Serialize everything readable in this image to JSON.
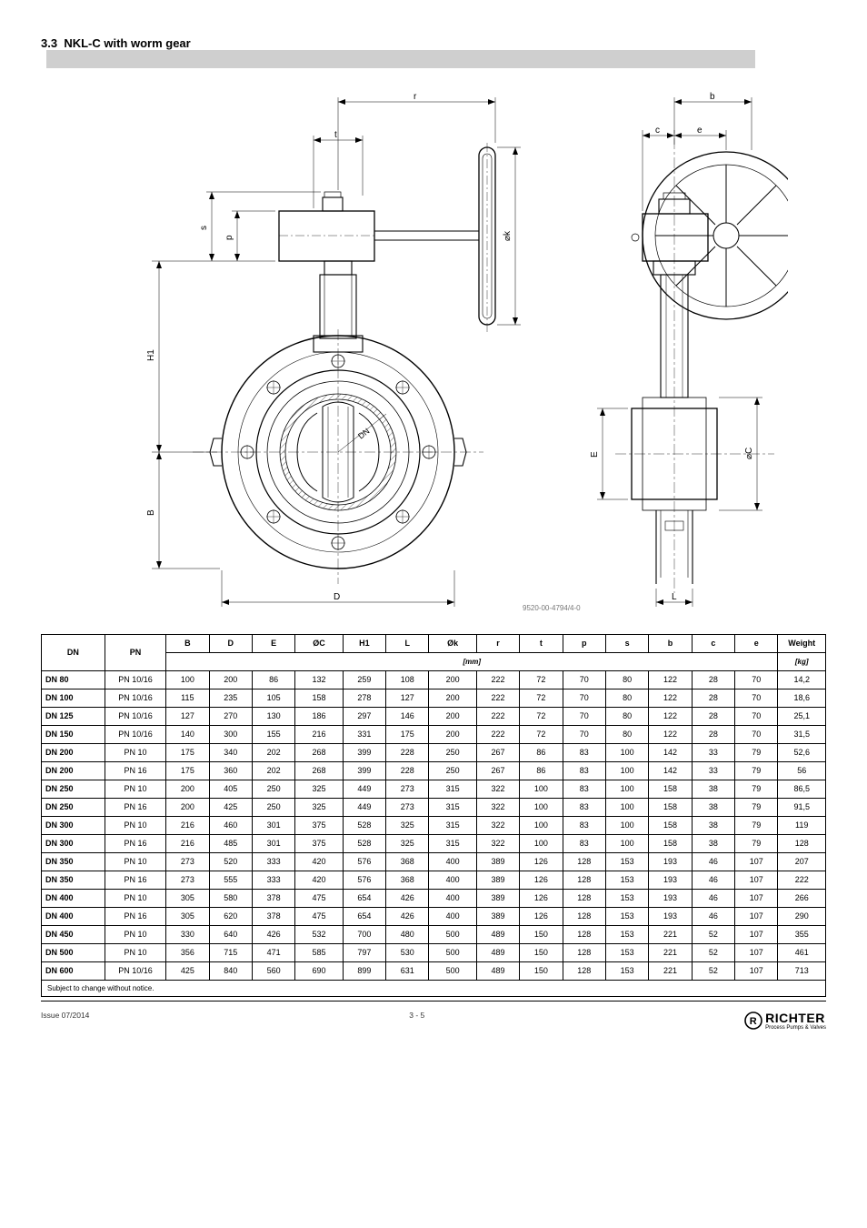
{
  "page": {
    "section_no": "3.3",
    "section_title": "NKL-C with worm gear",
    "drawing_number": "9520-00-4794/4-0",
    "issue": "Issue 07/2014",
    "page_number": "3 - 5",
    "brand": "RICHTER",
    "brand_sub": "Process Pumps & Valves"
  },
  "diagram": {
    "labels": [
      "r",
      "t",
      "s",
      "p",
      "H1",
      "B",
      "D",
      "DN",
      "Øk",
      "b",
      "c",
      "e",
      "E",
      "ØC",
      "L"
    ],
    "fontsize": 9,
    "line_color": "#000000",
    "thin_line_width": 0.5,
    "bold_line_width": 1.2
  },
  "table": {
    "columns": [
      "DN",
      "PN",
      "B",
      "D",
      "E",
      "ØC",
      "H1",
      "L",
      "Øk",
      "r",
      "t",
      "p",
      "s",
      "b",
      "c",
      "e",
      "Weight"
    ],
    "mm_header_span": "[mm]",
    "kg_header": "[kg]",
    "rows": [
      [
        "DN 80",
        "PN 10/16",
        "100",
        "200",
        "86",
        "132",
        "259",
        "108",
        "200",
        "222",
        "72",
        "70",
        "80",
        "122",
        "28",
        "70",
        "14,2"
      ],
      [
        "DN 100",
        "PN 10/16",
        "115",
        "235",
        "105",
        "158",
        "278",
        "127",
        "200",
        "222",
        "72",
        "70",
        "80",
        "122",
        "28",
        "70",
        "18,6"
      ],
      [
        "DN 125",
        "PN 10/16",
        "127",
        "270",
        "130",
        "186",
        "297",
        "146",
        "200",
        "222",
        "72",
        "70",
        "80",
        "122",
        "28",
        "70",
        "25,1"
      ],
      [
        "DN 150",
        "PN 10/16",
        "140",
        "300",
        "155",
        "216",
        "331",
        "175",
        "200",
        "222",
        "72",
        "70",
        "80",
        "122",
        "28",
        "70",
        "31,5"
      ],
      [
        "DN 200",
        "PN 10",
        "175",
        "340",
        "202",
        "268",
        "399",
        "228",
        "250",
        "267",
        "86",
        "83",
        "100",
        "142",
        "33",
        "79",
        "52,6"
      ],
      [
        "DN 200",
        "PN 16",
        "175",
        "360",
        "202",
        "268",
        "399",
        "228",
        "250",
        "267",
        "86",
        "83",
        "100",
        "142",
        "33",
        "79",
        "56"
      ],
      [
        "DN 250",
        "PN 10",
        "200",
        "405",
        "250",
        "325",
        "449",
        "273",
        "315",
        "322",
        "100",
        "83",
        "100",
        "158",
        "38",
        "79",
        "86,5"
      ],
      [
        "DN 250",
        "PN 16",
        "200",
        "425",
        "250",
        "325",
        "449",
        "273",
        "315",
        "322",
        "100",
        "83",
        "100",
        "158",
        "38",
        "79",
        "91,5"
      ],
      [
        "DN 300",
        "PN 10",
        "216",
        "460",
        "301",
        "375",
        "528",
        "325",
        "315",
        "322",
        "100",
        "83",
        "100",
        "158",
        "38",
        "79",
        "119"
      ],
      [
        "DN 300",
        "PN 16",
        "216",
        "485",
        "301",
        "375",
        "528",
        "325",
        "315",
        "322",
        "100",
        "83",
        "100",
        "158",
        "38",
        "79",
        "128"
      ],
      [
        "DN 350",
        "PN 10",
        "273",
        "520",
        "333",
        "420",
        "576",
        "368",
        "400",
        "389",
        "126",
        "128",
        "153",
        "193",
        "46",
        "107",
        "207"
      ],
      [
        "DN 350",
        "PN 16",
        "273",
        "555",
        "333",
        "420",
        "576",
        "368",
        "400",
        "389",
        "126",
        "128",
        "153",
        "193",
        "46",
        "107",
        "222"
      ],
      [
        "DN 400",
        "PN 10",
        "305",
        "580",
        "378",
        "475",
        "654",
        "426",
        "400",
        "389",
        "126",
        "128",
        "153",
        "193",
        "46",
        "107",
        "266"
      ],
      [
        "DN 400",
        "PN 16",
        "305",
        "620",
        "378",
        "475",
        "654",
        "426",
        "400",
        "389",
        "126",
        "128",
        "153",
        "193",
        "46",
        "107",
        "290"
      ],
      [
        "DN 450",
        "PN 10",
        "330",
        "640",
        "426",
        "532",
        "700",
        "480",
        "500",
        "489",
        "150",
        "128",
        "153",
        "221",
        "52",
        "107",
        "355"
      ],
      [
        "DN 500",
        "PN 10",
        "356",
        "715",
        "471",
        "585",
        "797",
        "530",
        "500",
        "489",
        "150",
        "128",
        "153",
        "221",
        "52",
        "107",
        "461"
      ],
      [
        "DN 600",
        "PN 10/16",
        "425",
        "840",
        "560",
        "690",
        "899",
        "631",
        "500",
        "489",
        "150",
        "128",
        "153",
        "221",
        "52",
        "107",
        "713"
      ]
    ],
    "note": "Subject to change without notice.",
    "bg_color": "#ffffff",
    "border_color": "#000000",
    "header_fontsize": 9,
    "cell_fontsize": 9
  }
}
